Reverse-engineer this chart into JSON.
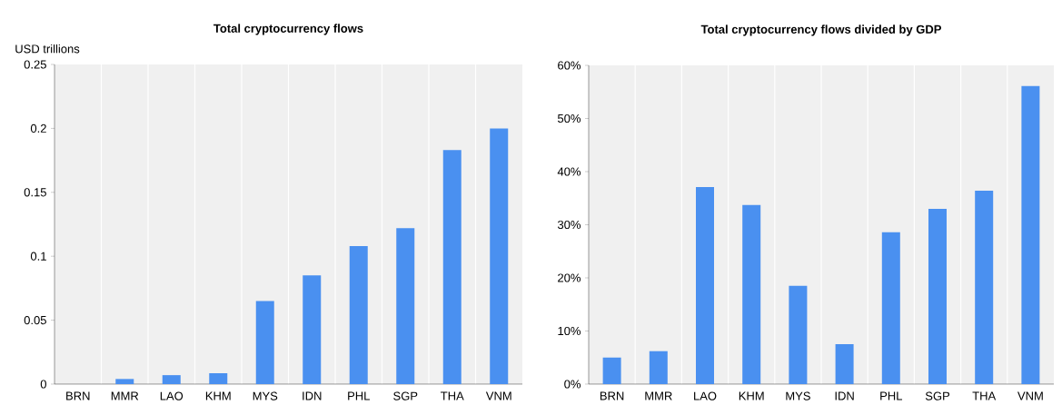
{
  "chart_data": [
    {
      "type": "bar",
      "title": "Total cryptocurrency flows",
      "ylabel": "USD trillions",
      "categories": [
        "BRN",
        "MMR",
        "LAO",
        "KHM",
        "MYS",
        "IDN",
        "PHL",
        "SGP",
        "THA",
        "VNM"
      ],
      "values": [
        0,
        0.004,
        0.007,
        0.0085,
        0.065,
        0.085,
        0.108,
        0.122,
        0.183,
        0.2
      ],
      "color": "#4a90f0",
      "ylim": [
        0,
        0.25
      ],
      "yticks": [
        0,
        0.05,
        0.1,
        0.15,
        0.2,
        0.25
      ],
      "grid": "x"
    },
    {
      "type": "bar",
      "title": "Total cryptocurrency flows divided by GDP",
      "categories": [
        "BRN",
        "MMR",
        "LAO",
        "KHM",
        "MYS",
        "IDN",
        "PHL",
        "SGP",
        "THA",
        "VNM"
      ],
      "values": [
        5,
        6.2,
        37.1,
        33.7,
        18.5,
        7.5,
        28.6,
        33,
        36.4,
        56.1
      ],
      "color": "#4a90f0",
      "ylim": [
        0,
        60
      ],
      "yticks": [
        {
          "value": 0,
          "label": "0%"
        },
        {
          "value": 10,
          "label": "10%"
        },
        {
          "value": 20,
          "label": "20%"
        },
        {
          "value": 30,
          "label": "30%"
        },
        {
          "value": 40,
          "label": "40%"
        },
        {
          "value": 50,
          "label": "50%"
        },
        {
          "value": 60,
          "label": "60%"
        }
      ],
      "grid": "x"
    }
  ]
}
